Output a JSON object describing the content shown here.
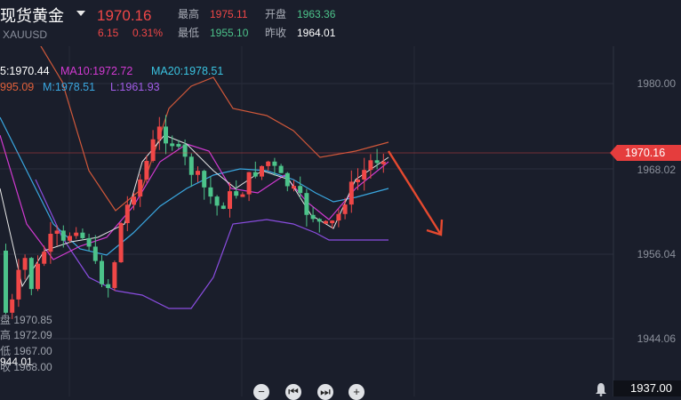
{
  "header": {
    "title": "现货黄金",
    "price": "1970.16",
    "symbol": "XAUUSD",
    "change": "6.15",
    "change_pct": "0.31%",
    "high_label": "最高",
    "high_value": "1975.11",
    "open_label": "开盘",
    "open_value": "1963.36",
    "low_label": "最低",
    "low_value": "1955.10",
    "prev_label": "昨收",
    "prev_value": "1964.01"
  },
  "indicators": {
    "ma5": "5:1970.44",
    "ma10": "MA10:1972.72",
    "ma20": "MA20:1978.51",
    "boll_up": "995.09",
    "boll_mid": "M:1978.51",
    "boll_low": "L:1961.93"
  },
  "axis": {
    "labels": [
      "1980.00",
      "1968.02",
      "1956.04",
      "1944.06"
    ],
    "current_price": "1970.16",
    "bottom_value": "1937.00"
  },
  "ohlc_overlay": {
    "open": "盘 1970.85",
    "high": "高 1972.09",
    "low": "低 1967.00",
    "close": "944.01",
    "close2": "收 1968.00"
  },
  "nav": {
    "zoom_out": "−",
    "first": "⏮",
    "last": "⏭",
    "zoom_in": "+"
  },
  "colors": {
    "up": "#f04747",
    "down": "#4cc38a",
    "ma5": "#ffffff",
    "ma10": "#d23ad2",
    "ma20": "#3aa7e0",
    "boll": "#e0603a",
    "boll_low": "#8a4de0",
    "arrow": "#e5492f"
  }
}
